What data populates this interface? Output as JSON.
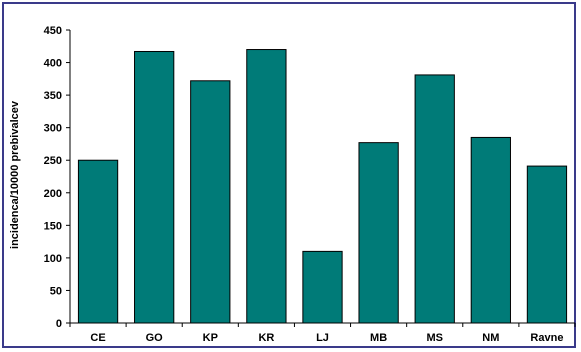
{
  "chart_data": {
    "type": "bar",
    "title": "",
    "xlabel": "",
    "ylabel": "incidenca/10000 prebivalcev",
    "ylim": [
      0,
      450
    ],
    "yticks": [
      0,
      50,
      100,
      150,
      200,
      250,
      300,
      350,
      400,
      450
    ],
    "categories": [
      "CE",
      "GO",
      "KP",
      "KR",
      "LJ",
      "MB",
      "MS",
      "NM",
      "Ravne"
    ],
    "values": [
      250,
      417,
      372,
      420,
      110,
      277,
      381,
      285,
      241
    ],
    "grid": false,
    "legend": "none",
    "colors": {
      "bar": "#007b78",
      "bar_stroke": "#000000",
      "frame": "#3a3a8a"
    }
  }
}
